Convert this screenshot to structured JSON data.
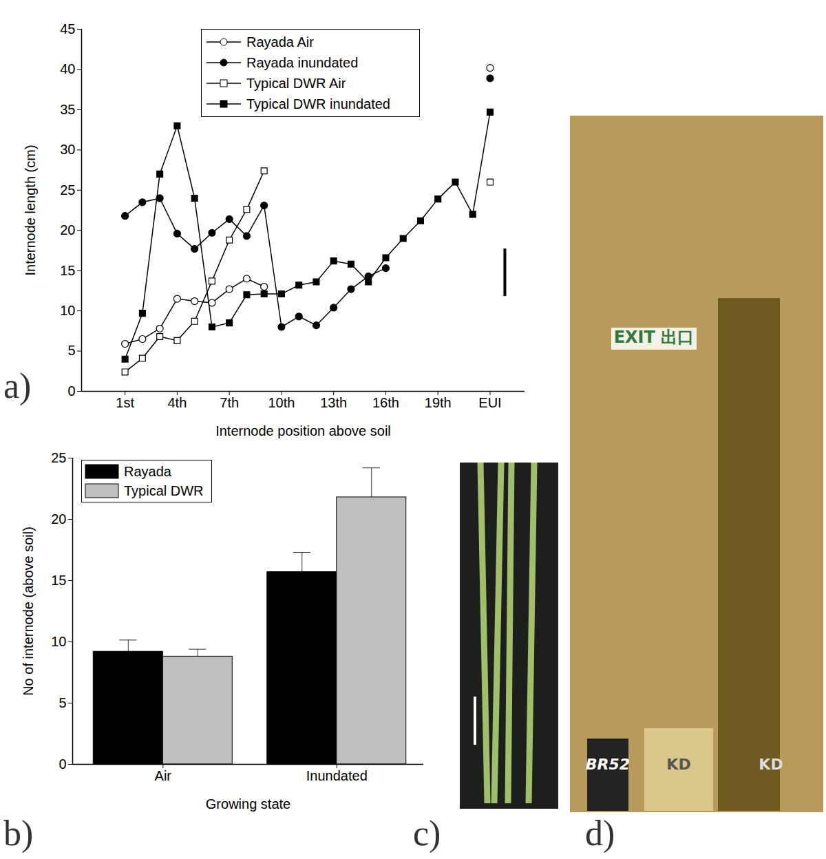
{
  "chart_data": [
    {
      "type": "line",
      "annotations": [
        "a)"
      ],
      "x_label": "Internode position above soil",
      "y_label": "Internode length (cm)",
      "x": [
        1,
        2,
        3,
        4,
        5,
        6,
        7,
        8,
        9,
        10,
        11,
        12,
        13,
        14,
        15,
        16,
        17,
        18,
        19,
        20,
        21,
        22
      ],
      "series": [
        {
          "name": "Rayada Air",
          "color": "#000000",
          "marker": "circle-open",
          "line_style": "solid",
          "values": [
            5.9,
            6.5,
            7.8,
            11.5,
            11.2,
            11.0,
            12.7,
            14.0,
            13.0,
            null,
            null,
            null,
            null,
            null,
            null,
            null,
            null,
            null,
            null,
            null,
            null,
            40.2
          ]
        },
        {
          "name": "Rayada inundated",
          "color": "#000000",
          "marker": "circle",
          "line_style": "solid",
          "values": [
            21.8,
            23.5,
            24.0,
            19.6,
            17.7,
            19.7,
            21.4,
            19.3,
            23.1,
            8.0,
            9.3,
            8.2,
            10.4,
            12.7,
            14.3,
            15.3,
            null,
            null,
            null,
            null,
            null,
            38.9
          ]
        },
        {
          "name": "Typical DWR Air",
          "color": "#000000",
          "marker": "square-open",
          "line_style": "solid",
          "values": [
            2.4,
            4.1,
            6.8,
            6.3,
            8.7,
            13.7,
            18.8,
            22.6,
            27.4,
            null,
            null,
            null,
            null,
            null,
            null,
            null,
            null,
            null,
            null,
            null,
            null,
            26.0
          ]
        },
        {
          "name": "Typical DWR inundated",
          "color": "#000000",
          "marker": "square",
          "line_style": "solid",
          "values": [
            4.0,
            9.7,
            27.0,
            33.0,
            24.0,
            8.0,
            8.5,
            12.0,
            12.1,
            12.1,
            13.2,
            13.6,
            16.2,
            15.8,
            13.6,
            16.6,
            19.0,
            21.2,
            23.9,
            26.0,
            22.0,
            34.7
          ]
        }
      ],
      "lsd_bar": {
        "x": 22.85,
        "low": 11.8,
        "high": 17.7
      },
      "xlim": [
        -1.5,
        24
      ],
      "xticks": [
        {
          "value": 1,
          "label": "1st"
        },
        {
          "value": 4,
          "label": "4th"
        },
        {
          "value": 7,
          "label": "7th"
        },
        {
          "value": 10,
          "label": "10th"
        },
        {
          "value": 13,
          "label": "13th"
        },
        {
          "value": 16,
          "label": "16th"
        },
        {
          "value": 19,
          "label": "19th"
        },
        {
          "value": 22,
          "label": "EUI"
        }
      ],
      "ylim": [
        0,
        45
      ],
      "yticks": [
        0,
        5,
        10,
        15,
        20,
        25,
        30,
        35,
        40,
        45
      ],
      "grid": false,
      "legend": "top"
    },
    {
      "type": "bar",
      "annotations": [
        "b)"
      ],
      "x_label": "Growing state",
      "y_label": "No of internode (above soil)",
      "categories": [
        "Air",
        "Inundated"
      ],
      "series": [
        {
          "name": "Rayada",
          "color": "#000000",
          "values": [
            9.2,
            15.7
          ],
          "errors": [
            0.95,
            1.6
          ]
        },
        {
          "name": "Typical DWR",
          "color": "#c0c0c0",
          "values": [
            8.8,
            21.8
          ],
          "errors": [
            0.6,
            2.4
          ]
        }
      ],
      "ylim": [
        0,
        25
      ],
      "yticks": [
        0,
        5,
        10,
        15,
        20,
        25
      ],
      "grid": false,
      "legend": "top-left"
    }
  ],
  "photos": [
    {
      "panel": "c)",
      "labels": []
    },
    {
      "panel": "d)",
      "labels": [
        "EXIT 出口",
        "BR52",
        "KD",
        "KD"
      ]
    }
  ]
}
